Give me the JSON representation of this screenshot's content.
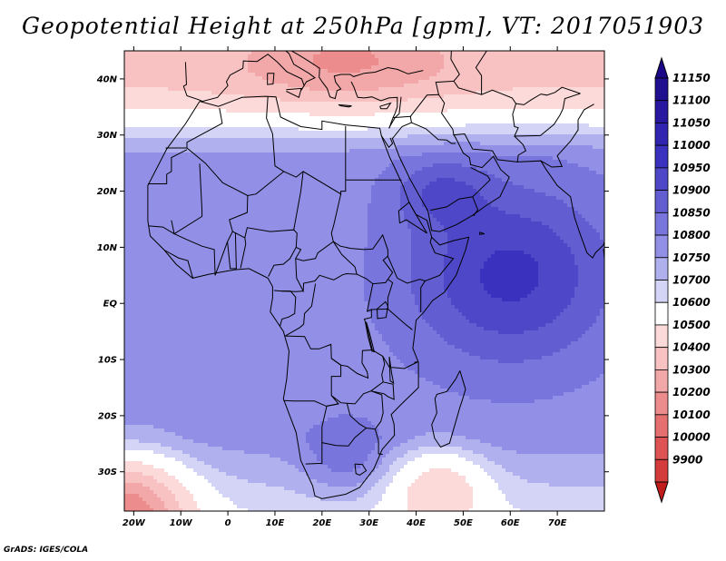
{
  "title": "Geopotential Height at 250hPa [gpm], VT: 2017051903",
  "footer": "GrADS: IGES/COLA",
  "map": {
    "lon_range": [
      -22,
      80
    ],
    "lat_range": [
      -37,
      45
    ],
    "lon_ticks": [
      {
        "value": -20,
        "label": "20W"
      },
      {
        "value": -10,
        "label": "10W"
      },
      {
        "value": 0,
        "label": "0"
      },
      {
        "value": 10,
        "label": "10E"
      },
      {
        "value": 20,
        "label": "20E"
      },
      {
        "value": 30,
        "label": "30E"
      },
      {
        "value": 40,
        "label": "40E"
      },
      {
        "value": 50,
        "label": "50E"
      },
      {
        "value": 60,
        "label": "60E"
      },
      {
        "value": 70,
        "label": "70E"
      }
    ],
    "lat_ticks": [
      {
        "value": 40,
        "label": "40N"
      },
      {
        "value": 30,
        "label": "30N"
      },
      {
        "value": 20,
        "label": "20N"
      },
      {
        "value": 10,
        "label": "10N"
      },
      {
        "value": 0,
        "label": "EQ"
      },
      {
        "value": -10,
        "label": "10S"
      },
      {
        "value": -20,
        "label": "20S"
      },
      {
        "value": -30,
        "label": "30S"
      }
    ],
    "field": {
      "base": 10825,
      "features": [
        {
          "type": "band",
          "center_lat": 39,
          "width": 7,
          "amp": -150
        },
        {
          "type": "blob",
          "lon": 25,
          "lat": 44,
          "rlon": 22,
          "rlat": 8,
          "amp": -200
        },
        {
          "type": "blob",
          "lon": -22,
          "lat": -37,
          "rlon": 13,
          "rlat": 9,
          "amp": -500
        },
        {
          "type": "blob",
          "lon": 45,
          "lat": -33,
          "rlon": 10,
          "rlat": 7,
          "amp": -230
        },
        {
          "type": "blob",
          "lon": 25,
          "lat": -28,
          "rlon": 9,
          "rlat": 7,
          "amp": 90
        },
        {
          "type": "blob",
          "lon": 60,
          "lat": 5,
          "rlon": 22,
          "rlat": 16,
          "amp": 190
        },
        {
          "type": "blob",
          "lon": 45,
          "lat": 20,
          "rlon": 10,
          "rlat": 6,
          "amp": 100
        }
      ]
    }
  },
  "colorbar": {
    "levels": [
      {
        "value": "11150",
        "color": "#201090"
      },
      {
        "value": "11100",
        "color": "#2818a0"
      },
      {
        "value": "11050",
        "color": "#3024b0"
      },
      {
        "value": "11000",
        "color": "#3a32be"
      },
      {
        "value": "10950",
        "color": "#4e48c8"
      },
      {
        "value": "10900",
        "color": "#625ed2"
      },
      {
        "value": "10850",
        "color": "#7876dc"
      },
      {
        "value": "10800",
        "color": "#9290e6"
      },
      {
        "value": "10750",
        "color": "#b0b0ee"
      },
      {
        "value": "10700",
        "color": "#d4d4f6"
      },
      {
        "value": "10600",
        "color": "#ffffff"
      },
      {
        "value": "10500",
        "color": "#fcdada"
      },
      {
        "value": "10400",
        "color": "#f8c2c2"
      },
      {
        "value": "10300",
        "color": "#f2a8a8"
      },
      {
        "value": "10200",
        "color": "#ec8c8c"
      },
      {
        "value": "10100",
        "color": "#e67070"
      },
      {
        "value": "10000",
        "color": "#de5454"
      },
      {
        "value": "9900",
        "color": "#d43c3c"
      }
    ],
    "top_arrow_color": "#1a0888",
    "bottom_arrow_color": "#c01c1c"
  },
  "map_layers": {
    "coastline": "coastline-outline",
    "borders": "country-borders"
  }
}
